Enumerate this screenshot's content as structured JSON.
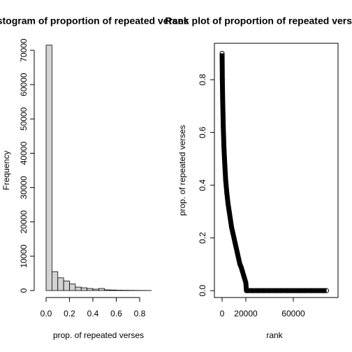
{
  "chart_data": [
    {
      "type": "histogram",
      "title": "Histogram of proportion of repeated verses",
      "xlabel": "prop. of repeated verses",
      "ylabel": "Frequency",
      "bins": [
        0,
        0.05,
        0.1,
        0.15,
        0.2,
        0.25,
        0.3,
        0.35,
        0.4,
        0.45,
        0.5,
        0.55,
        0.6,
        0.65,
        0.7,
        0.75,
        0.8,
        0.85,
        0.9
      ],
      "values": [
        71500,
        5500,
        3700,
        2800,
        1900,
        1000,
        800,
        600,
        400,
        600,
        200,
        150,
        100,
        80,
        60,
        40,
        30,
        20
      ],
      "color": "#d3d3d3",
      "xticks": [
        {
          "value": 0,
          "label": "0.0"
        },
        0.2,
        0.4,
        0.6,
        0.8
      ],
      "yticks": [
        0,
        10000,
        20000,
        30000,
        40000,
        50000,
        60000,
        70000
      ]
    },
    {
      "type": "scatter",
      "title": "Rank plot of proportion of repeated verses",
      "xlabel": "rank",
      "ylabel": "prop. of repeated verses",
      "x": [
        1,
        200,
        500,
        1000,
        1500,
        2000,
        3000,
        4000,
        5000,
        6000,
        7000,
        8000,
        9000,
        10000,
        11000,
        12000,
        13000,
        14000,
        15000,
        16000,
        17000,
        18000,
        19000,
        20000,
        20500,
        25000,
        30000,
        35000,
        40000,
        45000,
        50000,
        55000,
        60000,
        65000,
        70000,
        75000,
        80000,
        85000,
        88000
      ],
      "values": [
        0.9,
        0.8,
        0.72,
        0.62,
        0.55,
        0.5,
        0.42,
        0.37,
        0.33,
        0.3,
        0.27,
        0.24,
        0.22,
        0.2,
        0.18,
        0.16,
        0.14,
        0.12,
        0.1,
        0.09,
        0.075,
        0.06,
        0.045,
        0.03,
        0,
        0,
        0,
        0,
        0,
        0,
        0,
        0,
        0,
        0,
        0,
        0,
        0,
        0,
        0
      ],
      "color": "#000000",
      "xlim": [
        -6470,
        97650
      ],
      "ylim": [
        -0.026,
        0.938
      ],
      "xticks": [
        0,
        20000,
        60000
      ],
      "yticks": [
        {
          "value": 0,
          "label": "0.0"
        },
        0.2,
        0.4,
        0.6,
        0.8
      ]
    }
  ]
}
